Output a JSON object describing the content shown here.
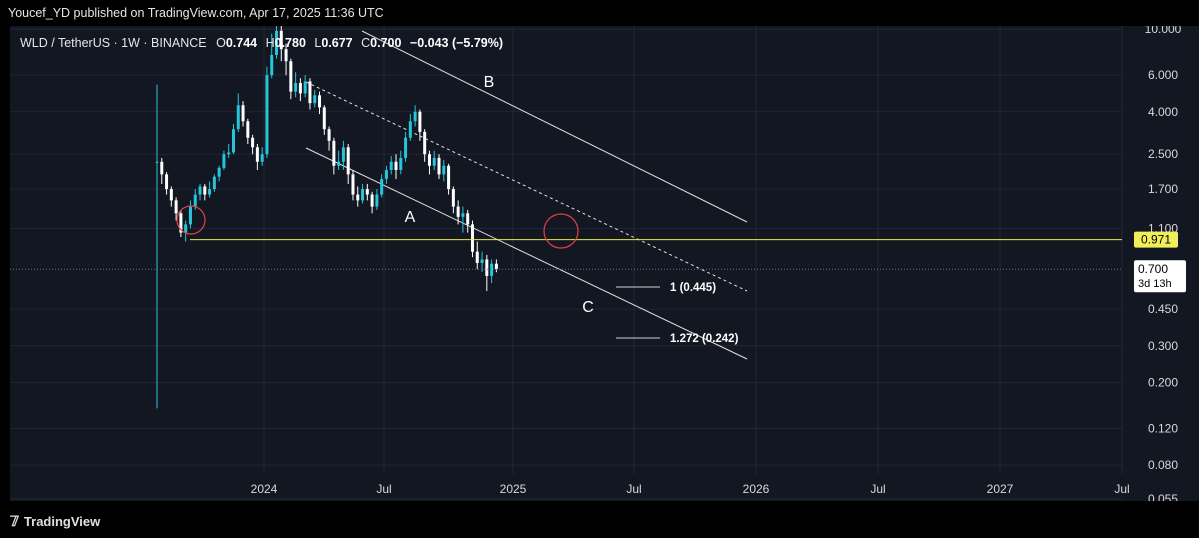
{
  "header": {
    "published": "Youcef_YD published on TradingView.com, Apr 17, 2025 11:36 UTC"
  },
  "footer": {
    "brand": "TradingView"
  },
  "chart_data": {
    "type": "candlestick",
    "legend": {
      "symbol": "WLD / TetherUS · 1W · BINANCE",
      "open_label": "O",
      "open": "0.744",
      "high_label": "H",
      "high": "0.780",
      "low_label": "L",
      "low": "0.677",
      "close_label": "C",
      "close": "0.700",
      "change": "−0.043 (−5.79%)"
    },
    "scale": "log",
    "y_ticks": [
      "10.000",
      "6.000",
      "4.000",
      "2.500",
      "1.700",
      "1.100",
      "0.450",
      "0.300",
      "0.200",
      "0.120",
      "0.080",
      "0.055"
    ],
    "x_ticks": [
      "2024",
      "Jul",
      "2025",
      "Jul",
      "2026",
      "Jul",
      "2027",
      "Jul"
    ],
    "price_tags": [
      {
        "value": "0.971",
        "color": "#f0ef5a"
      },
      {
        "value": "0.700",
        "sub": "3d 13h",
        "color": "#ffffff"
      }
    ],
    "wave_labels": [
      "A",
      "B",
      "C"
    ],
    "fib_targets": [
      {
        "label": "1 (0.445)"
      },
      {
        "label": "1.272 (0.242)"
      }
    ],
    "colors": {
      "up": "#26c6da",
      "down": "#ffffff",
      "support": "#e8e84a",
      "marker": "#e0404a",
      "channel": "#e0e0e0"
    },
    "candles": [
      [
        2.3,
        2.3,
        5.4,
        0.15
      ],
      [
        2.3,
        2.0,
        2.4,
        1.8
      ],
      [
        2.0,
        1.7,
        2.05,
        1.6
      ],
      [
        1.7,
        1.5,
        1.75,
        1.4
      ],
      [
        1.5,
        1.3,
        1.55,
        1.2
      ],
      [
        1.3,
        1.05,
        1.35,
        1.0
      ],
      [
        1.05,
        1.15,
        1.2,
        0.95
      ],
      [
        1.15,
        1.4,
        1.5,
        1.1
      ],
      [
        1.4,
        1.6,
        1.7,
        1.35
      ],
      [
        1.6,
        1.75,
        1.8,
        1.5
      ],
      [
        1.75,
        1.6,
        1.8,
        1.5
      ],
      [
        1.6,
        1.7,
        1.85,
        1.55
      ],
      [
        1.7,
        1.95,
        2.0,
        1.65
      ],
      [
        1.95,
        2.15,
        2.2,
        1.85
      ],
      [
        2.15,
        2.5,
        2.6,
        2.1
      ],
      [
        2.5,
        2.55,
        2.8,
        2.4
      ],
      [
        2.55,
        3.3,
        3.5,
        2.5
      ],
      [
        3.3,
        4.3,
        4.9,
        3.2
      ],
      [
        4.3,
        3.6,
        4.5,
        3.4
      ],
      [
        3.6,
        3.0,
        3.7,
        2.8
      ],
      [
        3.0,
        2.7,
        3.1,
        2.5
      ],
      [
        2.7,
        2.3,
        2.8,
        2.1
      ],
      [
        2.3,
        2.5,
        2.7,
        2.2
      ],
      [
        2.5,
        6.0,
        6.6,
        2.4
      ],
      [
        6.0,
        7.5,
        9.5,
        5.8
      ],
      [
        7.5,
        9.8,
        11.0,
        7.2
      ],
      [
        9.8,
        8.0,
        11.5,
        7.0
      ],
      [
        8.0,
        7.0,
        8.5,
        6.0
      ],
      [
        7.0,
        5.0,
        7.2,
        4.6
      ],
      [
        5.0,
        5.5,
        6.2,
        4.7
      ],
      [
        5.5,
        4.9,
        5.8,
        4.5
      ],
      [
        4.9,
        5.6,
        6.0,
        4.7
      ],
      [
        5.6,
        4.4,
        5.8,
        4.1
      ],
      [
        4.4,
        4.8,
        5.1,
        4.2
      ],
      [
        4.8,
        4.2,
        5.0,
        3.9
      ],
      [
        4.2,
        3.3,
        4.3,
        3.1
      ],
      [
        3.3,
        2.9,
        3.4,
        2.6
      ],
      [
        2.9,
        2.2,
        3.0,
        2.0
      ],
      [
        2.2,
        2.3,
        2.6,
        2.1
      ],
      [
        2.3,
        2.7,
        2.9,
        2.1
      ],
      [
        2.7,
        2.0,
        2.8,
        1.8
      ],
      [
        2.0,
        1.6,
        2.1,
        1.5
      ],
      [
        1.6,
        1.5,
        1.75,
        1.4
      ],
      [
        1.5,
        1.7,
        1.8,
        1.45
      ],
      [
        1.7,
        1.6,
        1.8,
        1.5
      ],
      [
        1.6,
        1.4,
        1.65,
        1.3
      ],
      [
        1.4,
        1.6,
        1.7,
        1.35
      ],
      [
        1.6,
        1.9,
        2.0,
        1.55
      ],
      [
        1.9,
        2.1,
        2.2,
        1.8
      ],
      [
        2.1,
        2.3,
        2.45,
        2.0
      ],
      [
        2.3,
        2.1,
        2.5,
        1.9
      ],
      [
        2.1,
        2.4,
        2.6,
        2.0
      ],
      [
        2.4,
        3.0,
        3.2,
        2.3
      ],
      [
        3.0,
        3.6,
        3.9,
        2.9
      ],
      [
        3.6,
        4.0,
        4.3,
        3.4
      ],
      [
        4.0,
        3.2,
        4.1,
        2.9
      ],
      [
        3.2,
        2.5,
        3.3,
        2.3
      ],
      [
        2.5,
        2.2,
        2.6,
        2.0
      ],
      [
        2.2,
        2.4,
        2.6,
        2.1
      ],
      [
        2.4,
        2.0,
        2.5,
        1.9
      ],
      [
        2.0,
        2.2,
        2.35,
        1.85
      ],
      [
        2.2,
        1.7,
        2.25,
        1.6
      ],
      [
        1.7,
        1.4,
        1.75,
        1.3
      ],
      [
        1.4,
        1.25,
        1.5,
        1.15
      ],
      [
        1.25,
        1.3,
        1.4,
        1.05
      ],
      [
        1.3,
        1.15,
        1.35,
        1.05
      ],
      [
        1.15,
        0.85,
        1.2,
        0.8
      ],
      [
        0.85,
        0.75,
        0.95,
        0.7
      ],
      [
        0.75,
        0.78,
        0.85,
        0.68
      ],
      [
        0.78,
        0.65,
        0.82,
        0.55
      ],
      [
        0.65,
        0.744,
        0.78,
        0.6
      ],
      [
        0.744,
        0.7,
        0.78,
        0.677
      ]
    ]
  }
}
